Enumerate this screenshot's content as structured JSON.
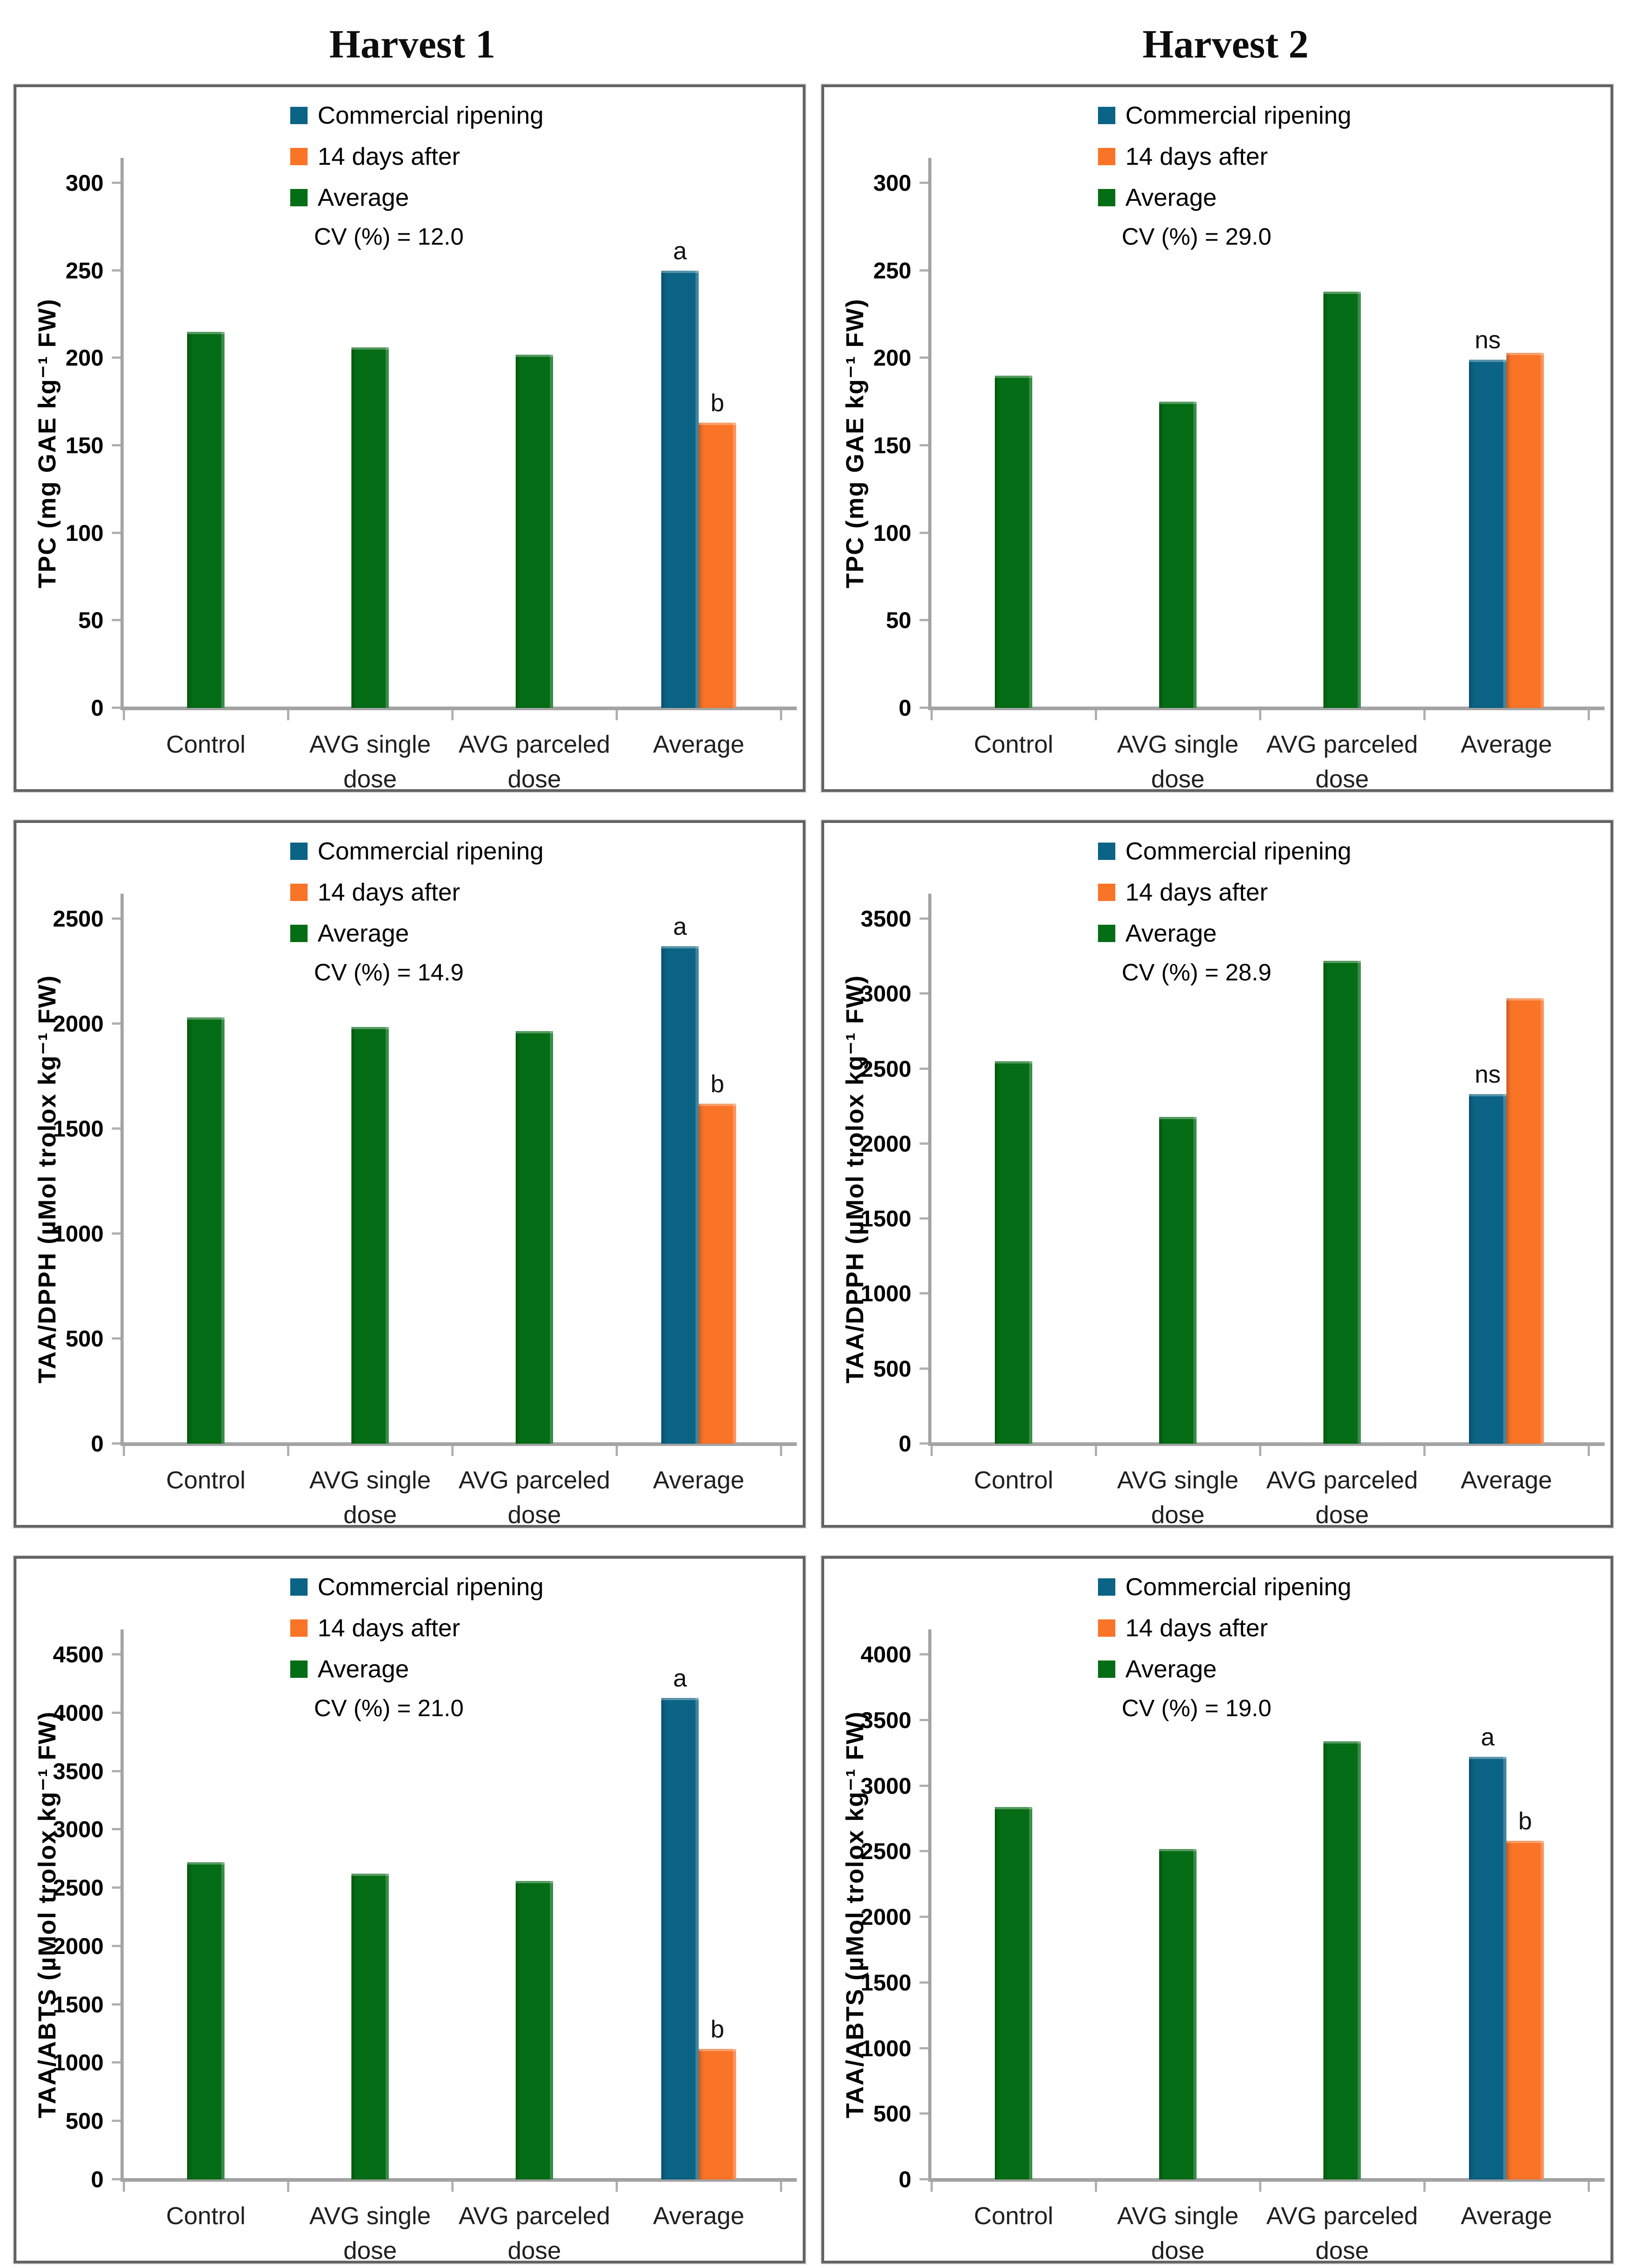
{
  "page": {
    "titles": {
      "left": "Harvest 1",
      "right": "Harvest 2"
    }
  },
  "colors": {
    "commercial_ripening": "#0b6385",
    "days14_after": "#fa7428",
    "average": "#056d15",
    "axis": "#a3a3a3",
    "box_border": "#636363"
  },
  "legend": {
    "items": [
      {
        "label": "Commercial ripening",
        "color": "#0b6385"
      },
      {
        "label": "14 days after",
        "color": "#fa7428"
      },
      {
        "label": "Average",
        "color": "#056d15"
      }
    ]
  },
  "axis": {
    "category_lines": [
      [
        "Control",
        ""
      ],
      [
        "AVG single",
        "dose"
      ],
      [
        "AVG parceled",
        "dose"
      ],
      [
        "Average",
        ""
      ]
    ]
  },
  "chart_data": [
    {
      "id": "tpc-harvest1",
      "harvest": "Harvest 1",
      "type": "bar",
      "ylabel": "TPC (mg GAE kg⁻¹ FW)",
      "ylim": [
        0,
        300
      ],
      "ytick_step": 50,
      "cv_label": "CV (%) = 12.0",
      "grid": false,
      "legend_position": "top-center",
      "categories": [
        "Control",
        "AVG single dose",
        "AVG parceled dose",
        "Average"
      ],
      "series": [
        {
          "name": "Commercial ripening",
          "color": "#0b6385",
          "values": [
            null,
            null,
            null,
            250
          ],
          "letter": "a"
        },
        {
          "name": "14 days after",
          "color": "#fa7428",
          "values": [
            null,
            null,
            null,
            163
          ],
          "letter": "b"
        },
        {
          "name": "Average",
          "color": "#056d15",
          "values": [
            215,
            206,
            202,
            null
          ],
          "letter": null
        }
      ]
    },
    {
      "id": "tpc-harvest2",
      "harvest": "Harvest 2",
      "type": "bar",
      "ylabel": "TPC (mg GAE kg⁻¹ FW)",
      "ylim": [
        0,
        300
      ],
      "ytick_step": 50,
      "cv_label": "CV (%) = 29.0",
      "grid": false,
      "legend_position": "top-center",
      "categories": [
        "Control",
        "AVG single dose",
        "AVG parceled dose",
        "Average"
      ],
      "series": [
        {
          "name": "Commercial ripening",
          "color": "#0b6385",
          "values": [
            null,
            null,
            null,
            199
          ],
          "letter": "ns"
        },
        {
          "name": "14 days after",
          "color": "#fa7428",
          "values": [
            null,
            null,
            null,
            203
          ],
          "letter": null
        },
        {
          "name": "Average",
          "color": "#056d15",
          "values": [
            190,
            175,
            238,
            null
          ],
          "letter": null
        }
      ]
    },
    {
      "id": "dpph-harvest1",
      "harvest": "Harvest 1",
      "type": "bar",
      "ylabel": "TAA/DPPH (µMol trolox kg⁻¹ FW)",
      "ylim": [
        0,
        2500
      ],
      "ytick_step": 500,
      "cv_label": "CV (%) = 14.9",
      "grid": false,
      "legend_position": "top-center",
      "categories": [
        "Control",
        "AVG single dose",
        "AVG parceled dose",
        "Average"
      ],
      "series": [
        {
          "name": "Commercial ripening",
          "color": "#0b6385",
          "values": [
            null,
            null,
            null,
            2370
          ],
          "letter": "a"
        },
        {
          "name": "14 days after",
          "color": "#fa7428",
          "values": [
            null,
            null,
            null,
            1620
          ],
          "letter": "b"
        },
        {
          "name": "Average",
          "color": "#056d15",
          "values": [
            2030,
            1985,
            1965,
            null
          ],
          "letter": null
        }
      ]
    },
    {
      "id": "dpph-harvest2",
      "harvest": "Harvest 2",
      "type": "bar",
      "ylabel": "TAA/DPPH (µMol trolox kg⁻¹ FW)",
      "ylim": [
        0,
        3500
      ],
      "ytick_step": 500,
      "cv_label": "CV (%) = 28.9",
      "grid": false,
      "legend_position": "top-center",
      "categories": [
        "Control",
        "AVG single dose",
        "AVG parceled dose",
        "Average"
      ],
      "series": [
        {
          "name": "Commercial ripening",
          "color": "#0b6385",
          "values": [
            null,
            null,
            null,
            2330
          ],
          "letter": "ns"
        },
        {
          "name": "14 days after",
          "color": "#fa7428",
          "values": [
            null,
            null,
            null,
            2970
          ],
          "letter": null
        },
        {
          "name": "Average",
          "color": "#056d15",
          "values": [
            2550,
            2180,
            3220,
            null
          ],
          "letter": null
        }
      ]
    },
    {
      "id": "abts-harvest1",
      "harvest": "Harvest 1",
      "type": "bar",
      "ylabel": "TAA/ABTS (µMol trolox kg⁻¹ FW)",
      "ylim": [
        0,
        4500
      ],
      "ytick_step": 500,
      "cv_label": "CV (%) = 21.0",
      "grid": false,
      "legend_position": "top-center",
      "categories": [
        "Control",
        "AVG single dose",
        "AVG parceled dose",
        "Average"
      ],
      "series": [
        {
          "name": "Commercial ripening",
          "color": "#0b6385",
          "values": [
            null,
            null,
            null,
            4130
          ],
          "letter": "a"
        },
        {
          "name": "14 days after",
          "color": "#fa7428",
          "values": [
            null,
            null,
            null,
            1120
          ],
          "letter": "b"
        },
        {
          "name": "Average",
          "color": "#056d15",
          "values": [
            2720,
            2620,
            2560,
            null
          ],
          "letter": null
        }
      ]
    },
    {
      "id": "abts-harvest2",
      "harvest": "Harvest 2",
      "type": "bar",
      "ylabel": "TAA/ABTS (µMol trolox kg⁻¹ FW)",
      "ylim": [
        0,
        4000
      ],
      "ytick_step": 500,
      "cv_label": "CV (%) = 19.0",
      "grid": false,
      "legend_position": "top-center",
      "categories": [
        "Control",
        "AVG single dose",
        "AVG parceled dose",
        "Average"
      ],
      "series": [
        {
          "name": "Commercial ripening",
          "color": "#0b6385",
          "values": [
            null,
            null,
            null,
            3220
          ],
          "letter": "a"
        },
        {
          "name": "14 days after",
          "color": "#fa7428",
          "values": [
            null,
            null,
            null,
            2580
          ],
          "letter": "b"
        },
        {
          "name": "Average",
          "color": "#056d15",
          "values": [
            2840,
            2520,
            3340,
            null
          ],
          "letter": null
        }
      ]
    }
  ]
}
